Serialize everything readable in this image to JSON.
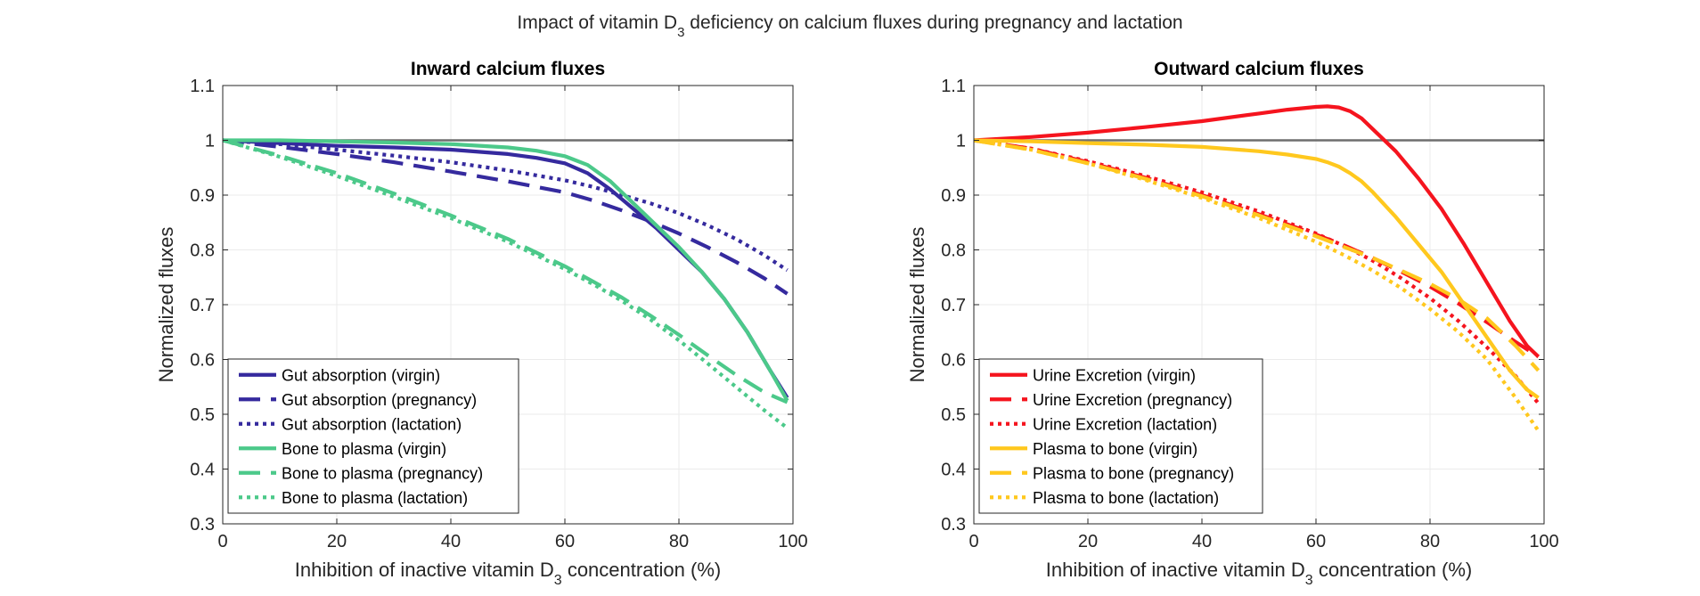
{
  "figure": {
    "suptitle": {
      "pre": "Impact of vitamin D",
      "sub": "3",
      "post": " deficiency on calcium fluxes during pregnancy and lactation"
    }
  },
  "chart_data": [
    {
      "type": "line",
      "title": "Inward calcium fluxes",
      "xlabel": {
        "pre": "Inhibition of inactive vitamin D",
        "sub": "3",
        "post": " concentration (%)"
      },
      "ylabel": "Normalized fluxes",
      "xlim": [
        0,
        100
      ],
      "ylim": [
        0.3,
        1.1
      ],
      "xticks": [
        0,
        20,
        40,
        60,
        80,
        100
      ],
      "yticks": [
        0.3,
        0.4,
        0.5,
        0.6,
        0.7,
        0.8,
        0.9,
        1.0,
        1.1
      ],
      "ytick_labels": [
        "0.3",
        "0.4",
        "0.5",
        "0.6",
        "0.7",
        "0.8",
        "0.9",
        "1",
        "1.1"
      ],
      "grid": true,
      "legend_position": "bottom-left",
      "reference_line": {
        "y": 1.0,
        "color": "#6e6e6e"
      },
      "series": [
        {
          "name": "Gut absorption (virgin)",
          "color": "#352a9e",
          "style": "solid",
          "x": [
            0,
            10,
            20,
            30,
            40,
            50,
            55,
            60,
            64,
            68,
            72,
            76,
            80,
            84,
            88,
            92,
            96,
            99
          ],
          "y": [
            1.0,
            0.995,
            0.99,
            0.987,
            0.983,
            0.975,
            0.968,
            0.958,
            0.94,
            0.91,
            0.875,
            0.84,
            0.8,
            0.76,
            0.71,
            0.65,
            0.58,
            0.53
          ]
        },
        {
          "name": "Gut absorption (pregnancy)",
          "color": "#352a9e",
          "style": "dashed",
          "x": [
            0,
            10,
            20,
            30,
            40,
            50,
            60,
            65,
            70,
            75,
            80,
            85,
            90,
            95,
            99
          ],
          "y": [
            1.0,
            0.988,
            0.975,
            0.96,
            0.943,
            0.925,
            0.905,
            0.89,
            0.872,
            0.852,
            0.83,
            0.805,
            0.778,
            0.748,
            0.72
          ]
        },
        {
          "name": "Gut absorption (lactation)",
          "color": "#352a9e",
          "style": "dotted",
          "x": [
            0,
            10,
            20,
            30,
            40,
            50,
            60,
            65,
            70,
            75,
            80,
            85,
            90,
            95,
            99
          ],
          "y": [
            1.0,
            0.993,
            0.983,
            0.972,
            0.96,
            0.945,
            0.927,
            0.915,
            0.9,
            0.885,
            0.867,
            0.845,
            0.82,
            0.79,
            0.763
          ]
        },
        {
          "name": "Bone to plasma (virgin)",
          "color": "#4cc98a",
          "style": "solid",
          "x": [
            0,
            10,
            20,
            30,
            40,
            50,
            55,
            60,
            64,
            68,
            72,
            76,
            80,
            84,
            88,
            92,
            96,
            99
          ],
          "y": [
            1.0,
            1.0,
            0.998,
            0.996,
            0.993,
            0.987,
            0.981,
            0.971,
            0.955,
            0.925,
            0.885,
            0.845,
            0.805,
            0.76,
            0.71,
            0.65,
            0.58,
            0.525
          ]
        },
        {
          "name": "Bone to plasma (pregnancy)",
          "color": "#4cc98a",
          "style": "dashed",
          "x": [
            0,
            10,
            20,
            30,
            40,
            50,
            60,
            65,
            70,
            75,
            80,
            85,
            90,
            95,
            99
          ],
          "y": [
            1.0,
            0.972,
            0.94,
            0.903,
            0.863,
            0.82,
            0.77,
            0.742,
            0.713,
            0.68,
            0.645,
            0.608,
            0.572,
            0.54,
            0.522
          ]
        },
        {
          "name": "Bone to plasma (lactation)",
          "color": "#4cc98a",
          "style": "dotted",
          "x": [
            0,
            10,
            20,
            30,
            40,
            50,
            60,
            65,
            70,
            75,
            80,
            85,
            90,
            95,
            99
          ],
          "y": [
            1.0,
            0.97,
            0.935,
            0.897,
            0.858,
            0.815,
            0.765,
            0.737,
            0.707,
            0.673,
            0.635,
            0.593,
            0.55,
            0.507,
            0.475
          ]
        }
      ]
    },
    {
      "type": "line",
      "title": "Outward calcium fluxes",
      "xlabel": {
        "pre": "Inhibition of inactive vitamin D",
        "sub": "3",
        "post": " concentration (%)"
      },
      "ylabel": "Normalized fluxes",
      "xlim": [
        0,
        100
      ],
      "ylim": [
        0.3,
        1.1
      ],
      "xticks": [
        0,
        20,
        40,
        60,
        80,
        100
      ],
      "yticks": [
        0.3,
        0.4,
        0.5,
        0.6,
        0.7,
        0.8,
        0.9,
        1.0,
        1.1
      ],
      "ytick_labels": [
        "0.3",
        "0.4",
        "0.5",
        "0.6",
        "0.7",
        "0.8",
        "0.9",
        "1",
        "1.1"
      ],
      "grid": true,
      "legend_position": "bottom-left",
      "reference_line": {
        "y": 1.0,
        "color": "#6e6e6e"
      },
      "series": [
        {
          "name": "Urine Excretion (virgin)",
          "color": "#f5141e",
          "style": "solid",
          "x": [
            0,
            10,
            20,
            30,
            40,
            50,
            55,
            60,
            62,
            64,
            66,
            68,
            70,
            74,
            78,
            82,
            86,
            90,
            94,
            97,
            99
          ],
          "y": [
            1.0,
            1.006,
            1.014,
            1.024,
            1.035,
            1.049,
            1.056,
            1.061,
            1.062,
            1.06,
            1.053,
            1.04,
            1.02,
            0.98,
            0.93,
            0.875,
            0.81,
            0.74,
            0.67,
            0.625,
            0.605
          ]
        },
        {
          "name": "Urine Excretion (pregnancy)",
          "color": "#f5141e",
          "style": "dashed",
          "x": [
            0,
            10,
            20,
            30,
            40,
            50,
            60,
            65,
            70,
            75,
            80,
            85,
            90,
            95,
            99
          ],
          "y": [
            1.0,
            0.985,
            0.96,
            0.932,
            0.9,
            0.865,
            0.828,
            0.808,
            0.785,
            0.76,
            0.733,
            0.702,
            0.668,
            0.632,
            0.605
          ]
        },
        {
          "name": "Urine Excretion (lactation)",
          "color": "#f5141e",
          "style": "dotted",
          "x": [
            0,
            10,
            20,
            30,
            40,
            50,
            60,
            65,
            70,
            75,
            80,
            85,
            90,
            95,
            99
          ],
          "y": [
            1.0,
            0.985,
            0.962,
            0.935,
            0.905,
            0.87,
            0.83,
            0.807,
            0.78,
            0.748,
            0.712,
            0.67,
            0.622,
            0.57,
            0.52
          ]
        },
        {
          "name": "Plasma to bone (virgin)",
          "color": "#ffc81e",
          "style": "solid",
          "x": [
            0,
            10,
            20,
            30,
            40,
            50,
            55,
            60,
            62,
            64,
            66,
            68,
            70,
            74,
            78,
            82,
            86,
            90,
            94,
            97,
            99
          ],
          "y": [
            1.0,
            0.998,
            0.995,
            0.992,
            0.988,
            0.98,
            0.974,
            0.966,
            0.96,
            0.952,
            0.94,
            0.925,
            0.905,
            0.86,
            0.81,
            0.76,
            0.7,
            0.64,
            0.58,
            0.545,
            0.53
          ]
        },
        {
          "name": "Plasma to bone (pregnancy)",
          "color": "#ffc81e",
          "style": "dashed",
          "x": [
            0,
            10,
            20,
            30,
            40,
            50,
            60,
            65,
            70,
            75,
            80,
            85,
            90,
            95,
            99
          ],
          "y": [
            1.0,
            0.983,
            0.958,
            0.93,
            0.898,
            0.863,
            0.825,
            0.805,
            0.785,
            0.762,
            0.738,
            0.71,
            0.675,
            0.625,
            0.58
          ]
        },
        {
          "name": "Plasma to bone (lactation)",
          "color": "#ffc81e",
          "style": "dotted",
          "x": [
            0,
            10,
            20,
            30,
            40,
            50,
            60,
            65,
            70,
            75,
            80,
            85,
            90,
            95,
            99
          ],
          "y": [
            1.0,
            0.983,
            0.958,
            0.928,
            0.895,
            0.858,
            0.815,
            0.79,
            0.762,
            0.73,
            0.692,
            0.65,
            0.6,
            0.53,
            0.47
          ]
        }
      ]
    }
  ]
}
